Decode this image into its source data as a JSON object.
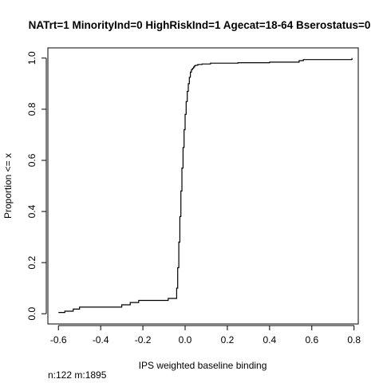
{
  "chart_data": {
    "type": "line",
    "title": "NATrt=1 MinorityInd=0 HighRiskInd=1 Agecat=18-64 Bserostatus=0",
    "xlabel": "IPS weighted baseline binding",
    "ylabel": "Proportion <= x",
    "note": "n:122 m:1895",
    "xlim": [
      -0.65,
      0.82
    ],
    "ylim": [
      -0.04,
      1.04
    ],
    "xticks": [
      -0.6,
      -0.4,
      -0.2,
      0.0,
      0.2,
      0.4,
      0.6,
      0.8
    ],
    "xtick_labels": [
      "-0.6",
      "-0.4",
      "-0.2",
      "0.0",
      "0.2",
      "0.4",
      "0.6",
      "0.8"
    ],
    "yticks": [
      0.0,
      0.2,
      0.4,
      0.6,
      0.8,
      1.0
    ],
    "ytick_labels": [
      "0.0",
      "0.2",
      "0.4",
      "0.6",
      "0.8",
      "1.0"
    ],
    "grid": false,
    "series": [
      {
        "step": "post",
        "x": [
          -0.6,
          -0.57,
          -0.53,
          -0.5,
          -0.3,
          -0.26,
          -0.22,
          -0.08,
          -0.04,
          -0.035,
          -0.03,
          -0.025,
          -0.02,
          -0.015,
          -0.01,
          -0.005,
          0.0,
          0.005,
          0.01,
          0.015,
          0.02,
          0.025,
          0.03,
          0.035,
          0.04,
          0.045,
          0.05,
          0.06,
          0.08,
          0.12,
          0.25,
          0.4,
          0.54,
          0.56,
          0.79
        ],
        "y": [
          0.005,
          0.01,
          0.018,
          0.026,
          0.035,
          0.044,
          0.052,
          0.06,
          0.1,
          0.18,
          0.28,
          0.38,
          0.48,
          0.57,
          0.65,
          0.72,
          0.78,
          0.83,
          0.87,
          0.9,
          0.925,
          0.945,
          0.955,
          0.96,
          0.965,
          0.97,
          0.972,
          0.975,
          0.977,
          0.98,
          0.982,
          0.984,
          0.99,
          0.994,
          1.0
        ]
      }
    ]
  }
}
